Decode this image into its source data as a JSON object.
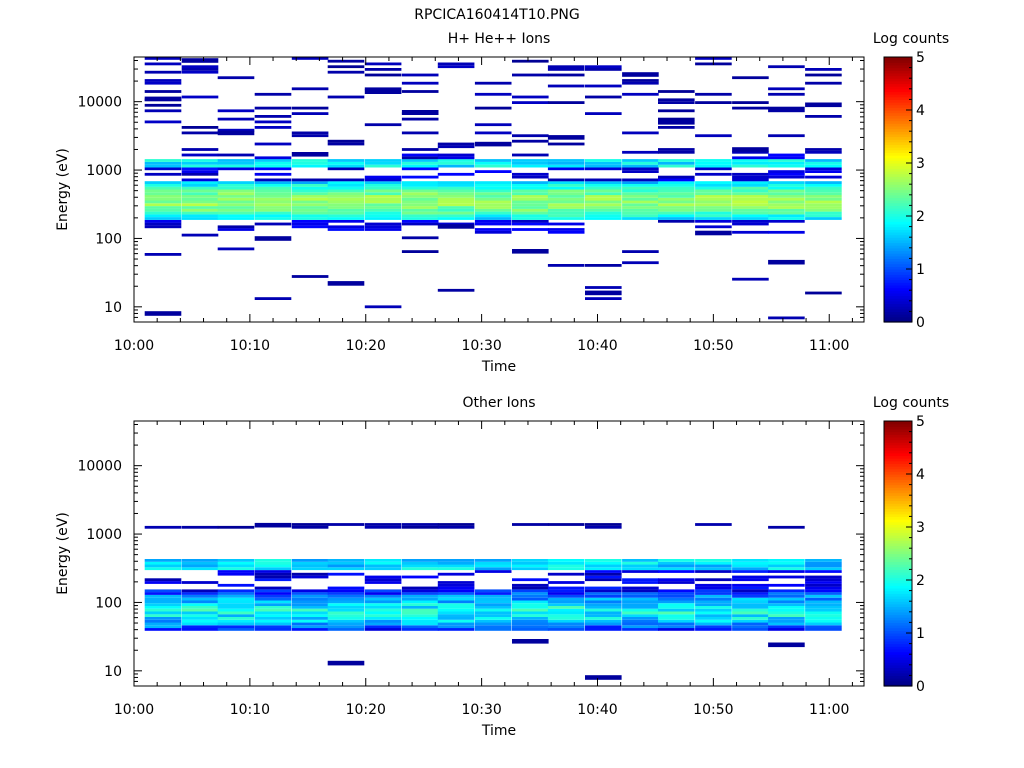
{
  "figure_title": "RPCICA160414T10.PNG",
  "chart_data": [
    {
      "type": "heatmap",
      "title": "H+ He++ Ions",
      "xlabel": "Time",
      "ylabel": "Energy (eV)",
      "xlim": [
        "10:00",
        "11:03"
      ],
      "ylim": [
        6,
        45000
      ],
      "yscale": "log",
      "x_ticks": [
        "10:00",
        "10:10",
        "10:20",
        "10:30",
        "10:40",
        "10:50",
        "11:00"
      ],
      "y_ticks": [
        "10",
        "100",
        "1000",
        "10000"
      ],
      "colorbar": {
        "label": "Log counts",
        "min": 0,
        "max": 5,
        "ticks": [
          "0",
          "1",
          "2",
          "3",
          "4",
          "5"
        ]
      },
      "time_bins": [
        "10:02.5",
        "10:05.7",
        "10:08.8",
        "10:12.0",
        "10:15.2",
        "10:18.3",
        "10:21.5",
        "10:24.7",
        "10:27.8",
        "10:31.0",
        "10:34.2",
        "10:37.3",
        "10:40.5",
        "10:43.7",
        "10:46.8",
        "10:50.0",
        "10:53.2",
        "10:56.3",
        "10:59.5"
      ],
      "spectrum": {
        "core_eV": [
          180,
          700
        ],
        "peak_eV": 350,
        "peak_log_counts": 2.6,
        "band_eV": [
          1050,
          1400
        ],
        "band_log_counts": 1.8
      },
      "sparse_points_eV": [
        11000,
        7000,
        5000,
        3500,
        2400,
        2000,
        1700,
        3000,
        9000,
        14000,
        25000,
        40000,
        150,
        120,
        100,
        65,
        45,
        22,
        16,
        8
      ]
    },
    {
      "type": "heatmap",
      "title": "Other Ions",
      "xlabel": "Time",
      "ylabel": "Energy (eV)",
      "xlim": [
        "10:00",
        "11:03"
      ],
      "ylim": [
        6,
        45000
      ],
      "yscale": "log",
      "x_ticks": [
        "10:00",
        "10:10",
        "10:20",
        "10:30",
        "10:40",
        "10:50",
        "11:00"
      ],
      "y_ticks": [
        "10",
        "100",
        "1000",
        "10000"
      ],
      "colorbar": {
        "label": "Log counts",
        "min": 0,
        "max": 5,
        "ticks": [
          "0",
          "1",
          "2",
          "3",
          "4",
          "5"
        ]
      },
      "time_bins": [
        "10:02.5",
        "10:05.7",
        "10:08.8",
        "10:12.0",
        "10:15.2",
        "10:18.3",
        "10:21.5",
        "10:24.7",
        "10:27.8",
        "10:31.0",
        "10:34.2",
        "10:37.3",
        "10:40.5",
        "10:43.7",
        "10:46.8",
        "10:50.0",
        "10:53.2",
        "10:56.3",
        "10:59.5"
      ],
      "spectrum": {
        "band_eV": [
          290,
          420
        ],
        "band_log_counts": 1.7,
        "low_eV": [
          40,
          160
        ],
        "low_peak_eV": 75,
        "low_peak_log_counts": 1.9
      },
      "sparse_points_eV": [
        1350,
        27,
        24,
        13,
        8
      ]
    }
  ]
}
